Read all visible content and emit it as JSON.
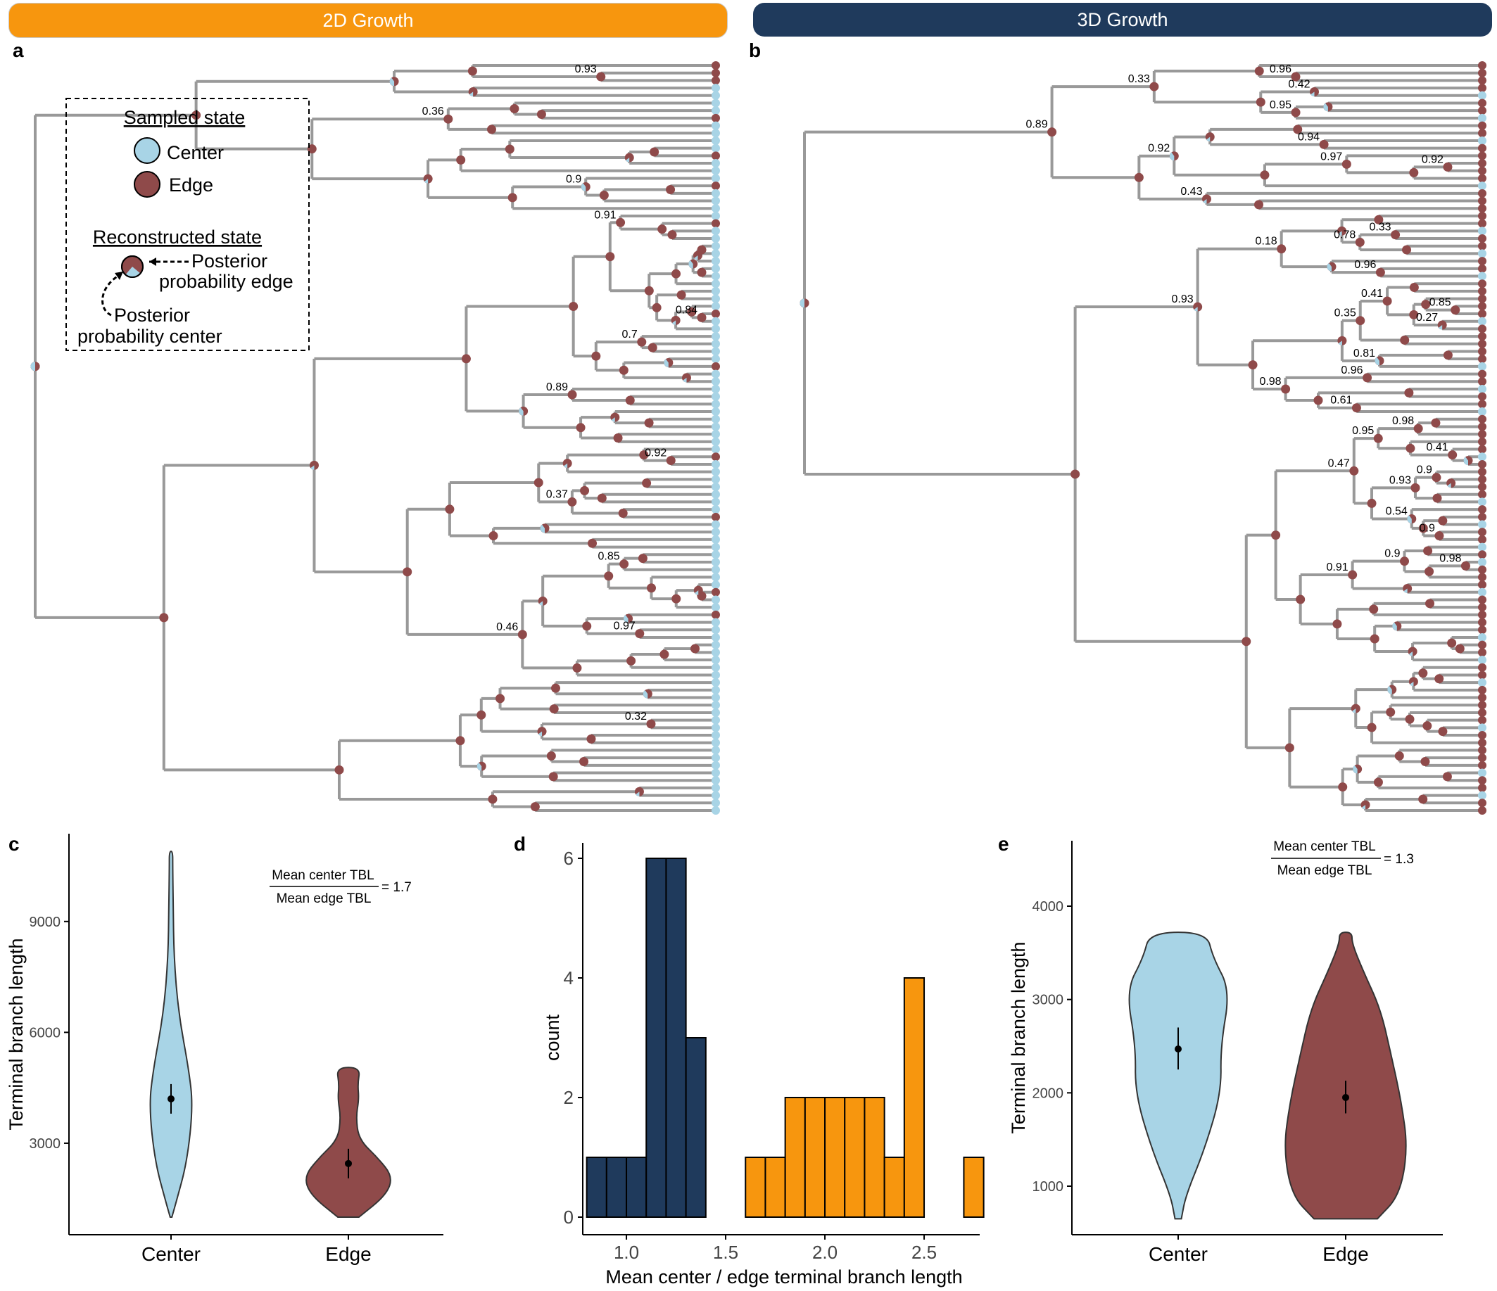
{
  "banners": {
    "left": "2D Growth",
    "right": "3D Growth"
  },
  "panel_labels": {
    "a": "a",
    "b": "b",
    "c": "c",
    "d": "d",
    "e": "e"
  },
  "legend": {
    "sampled_title": "Sampled state",
    "center": "Center",
    "edge": "Edge",
    "recon_title": "Reconstructed state",
    "post_edge_1": "Posterior",
    "post_edge_2": "probability edge",
    "post_center_1": "Posterior",
    "post_center_2": "probability center"
  },
  "colors": {
    "center": "#a8d4e6",
    "edge": "#8f4a4a",
    "orange": "#f7960e",
    "navy": "#1f3a5c",
    "branch": "#999999"
  },
  "tree_a_probabilities": [
    "0.93",
    "0.36",
    "0.9",
    "0.91",
    "0.84",
    "0.7",
    "0.89",
    "0.92",
    "0.37",
    "0.85",
    "0.97",
    "0.46",
    "0.32"
  ],
  "tree_b_probabilities": [
    "0.96",
    "0.42",
    "0.95",
    "0.33",
    "0.94",
    "0.92",
    "0.97",
    "0.92",
    "0.43",
    "0.89",
    "0.33",
    "0.78",
    "0.96",
    "0.18",
    "0.85",
    "0.27",
    "0.41",
    "0.35",
    "0.81",
    "0.96",
    "0.61",
    "0.98",
    "0.93",
    "0.98",
    "0.41",
    "0.95",
    "0.9",
    "0.93",
    "0.9",
    "0.54",
    "0.47",
    "0.98",
    "0.9",
    "0.91"
  ],
  "chart_data": [
    {
      "panel": "c",
      "type": "violin",
      "categories": [
        "Center",
        "Edge"
      ],
      "ylabel": "Terminal branch length",
      "xlabel": "",
      "yticks": [
        3000,
        6000,
        9000
      ],
      "ylim": [
        0,
        11500
      ],
      "series": [
        {
          "name": "Center",
          "min": 1000,
          "max": 10900,
          "mean": 4200,
          "ci": [
            3800,
            4600
          ]
        },
        {
          "name": "Edge",
          "min": 1000,
          "max": 5050,
          "mean": 2450,
          "ci": [
            2050,
            2850
          ]
        }
      ],
      "annotation": {
        "numerator": "Mean center TBL",
        "denominator": "Mean edge TBL",
        "value": "= 1.7"
      }
    },
    {
      "panel": "d",
      "type": "bar",
      "xlabel": "Mean center / edge terminal branch length",
      "ylabel": "count",
      "xticks": [
        "1.0",
        "1.5",
        "2.0",
        "2.5"
      ],
      "yticks": [
        0,
        2,
        4,
        6
      ],
      "xlim": [
        0.78,
        2.78
      ],
      "ylim": [
        0,
        6.3
      ],
      "bin_width": 0.1,
      "series": [
        {
          "group": "3D Growth",
          "bins": [
            [
              0.85,
              1
            ],
            [
              0.95,
              1
            ],
            [
              1.05,
              1
            ],
            [
              1.15,
              6
            ],
            [
              1.25,
              6
            ],
            [
              1.35,
              3
            ]
          ]
        },
        {
          "group": "2D Growth",
          "bins": [
            [
              1.65,
              1
            ],
            [
              1.75,
              1
            ],
            [
              1.85,
              2
            ],
            [
              1.95,
              2
            ],
            [
              2.05,
              2
            ],
            [
              2.15,
              2
            ],
            [
              2.25,
              2
            ],
            [
              2.35,
              1
            ],
            [
              2.45,
              4
            ],
            [
              2.75,
              1
            ]
          ]
        }
      ]
    },
    {
      "panel": "e",
      "type": "violin",
      "categories": [
        "Center",
        "Edge"
      ],
      "ylabel": "Terminal branch length",
      "xlabel": "",
      "yticks": [
        1000,
        2000,
        3000,
        4000
      ],
      "ylim": [
        500,
        4700
      ],
      "series": [
        {
          "name": "Center",
          "min": 650,
          "max": 3720,
          "mean": 2470,
          "ci": [
            2250,
            2700
          ]
        },
        {
          "name": "Edge",
          "min": 650,
          "max": 3720,
          "mean": 1950,
          "ci": [
            1780,
            2130
          ]
        }
      ],
      "annotation": {
        "numerator": "Mean center TBL",
        "denominator": "Mean edge TBL",
        "value": "= 1.3"
      }
    }
  ]
}
